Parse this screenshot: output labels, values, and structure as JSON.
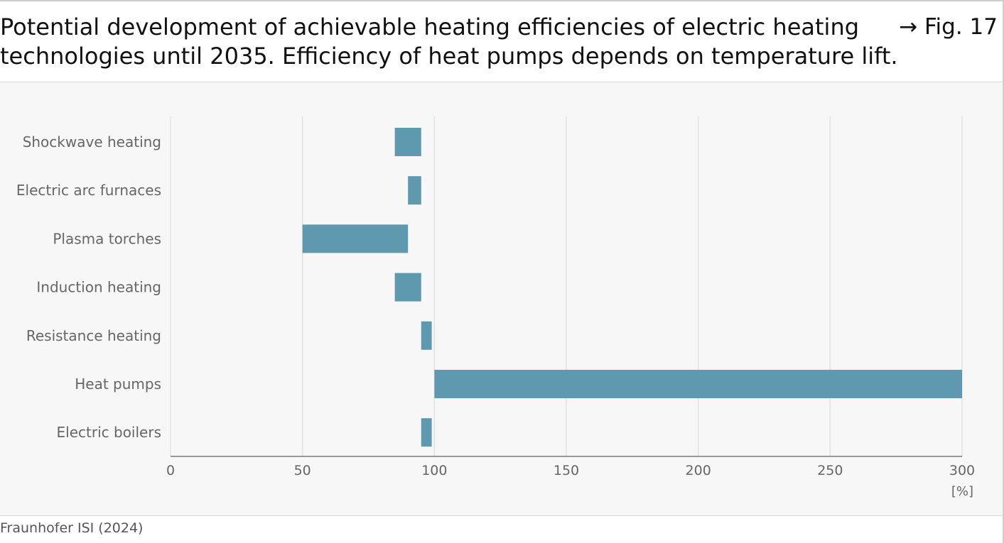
{
  "header": {
    "title_line1": "Potential development of achievable heating efficiencies of electric heating",
    "title_line2": "technologies until 2035. Efficiency of heat pumps depends on temperature lift.",
    "figure_ref": "→ Fig. 17"
  },
  "source": "Fraunhofer ISI (2024)",
  "colors": {
    "bar": "#5f99b0",
    "grid": "#e3e3e3",
    "axis": "#7a7a7a",
    "label": "#666666"
  },
  "chart_data": {
    "type": "bar",
    "orientation": "horizontal",
    "bar_style": "floating-range",
    "categories": [
      "Shockwave heating",
      "Electric arc furnaces",
      "Plasma torches",
      "Induction heating",
      "Resistance heating",
      "Heat pumps",
      "Electric boilers"
    ],
    "ranges": [
      [
        85,
        95
      ],
      [
        90,
        95
      ],
      [
        50,
        90
      ],
      [
        85,
        95
      ],
      [
        95,
        99
      ],
      [
        100,
        300
      ],
      [
        95,
        99
      ]
    ],
    "xlim": [
      0,
      300
    ],
    "xticks": [
      0,
      50,
      100,
      150,
      200,
      250,
      300
    ],
    "x_unit": "[%]",
    "grid": "vertical"
  }
}
